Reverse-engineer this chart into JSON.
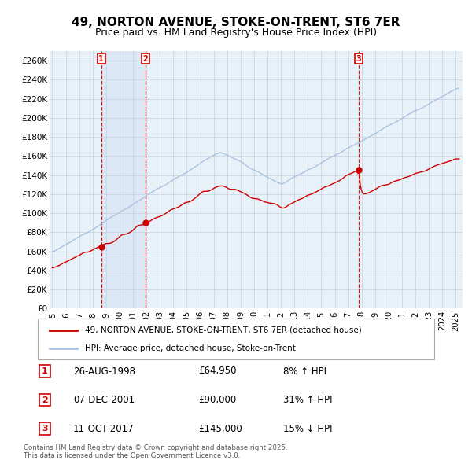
{
  "title": "49, NORTON AVENUE, STOKE-ON-TRENT, ST6 7ER",
  "subtitle": "Price paid vs. HM Land Registry's House Price Index (HPI)",
  "ylim": [
    0,
    270000
  ],
  "yticks": [
    0,
    20000,
    40000,
    60000,
    80000,
    100000,
    120000,
    140000,
    160000,
    180000,
    200000,
    220000,
    240000,
    260000
  ],
  "ytick_labels": [
    "£0",
    "£20K",
    "£40K",
    "£60K",
    "£80K",
    "£100K",
    "£120K",
    "£140K",
    "£160K",
    "£180K",
    "£200K",
    "£220K",
    "£240K",
    "£260K"
  ],
  "xlim_start": 1994.8,
  "xlim_end": 2025.5,
  "xtick_years": [
    1995,
    1996,
    1997,
    1998,
    1999,
    2000,
    2001,
    2002,
    2003,
    2004,
    2005,
    2006,
    2007,
    2008,
    2009,
    2010,
    2011,
    2012,
    2013,
    2014,
    2015,
    2016,
    2017,
    2018,
    2019,
    2020,
    2021,
    2022,
    2023,
    2024,
    2025
  ],
  "hpi_color": "#a8c4e0",
  "price_color": "#cc0000",
  "vline_color": "#cc0000",
  "shade_color": "#dce8f5",
  "grid_color": "#c8d0dc",
  "background_color": "#e8f0f8",
  "legend_label_price": "49, NORTON AVENUE, STOKE-ON-TRENT, ST6 7ER (detached house)",
  "legend_label_hpi": "HPI: Average price, detached house, Stoke-on-Trent",
  "sale1_date": 1998.648,
  "sale1_price": 64950,
  "sale1_label": "1",
  "sale1_pct": "8% ↑ HPI",
  "sale1_text": "26-AUG-1998",
  "sale2_date": 2001.923,
  "sale2_price": 90000,
  "sale2_label": "2",
  "sale2_pct": "31% ↑ HPI",
  "sale2_text": "07-DEC-2001",
  "sale3_date": 2017.775,
  "sale3_price": 145000,
  "sale3_label": "3",
  "sale3_pct": "15% ↓ HPI",
  "sale3_text": "11-OCT-2017",
  "footer": "Contains HM Land Registry data © Crown copyright and database right 2025.\nThis data is licensed under the Open Government Licence v3.0."
}
